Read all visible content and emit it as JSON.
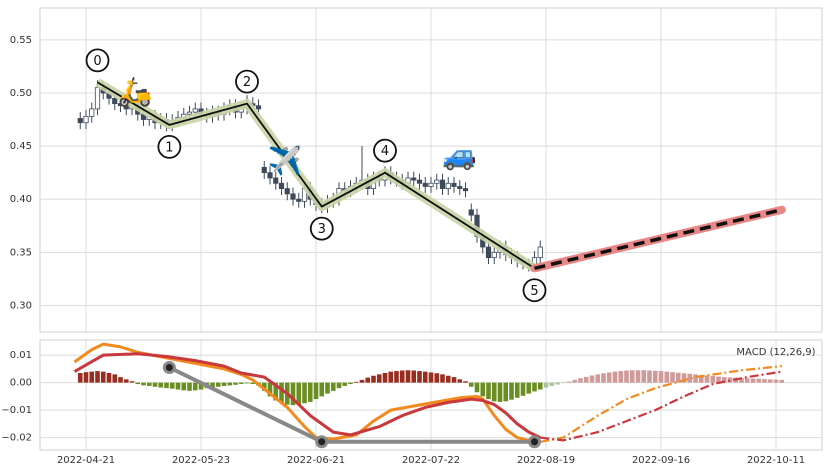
{
  "chart_data": [
    {
      "type": "candlestick",
      "xlim": [
        -7,
        129
      ],
      "ylim": [
        0.275,
        0.58
      ],
      "yticks": [
        {
          "value": 0.3,
          "label": "0.30"
        },
        0.35,
        {
          "value": 0.4,
          "label": "0.40"
        },
        0.45,
        {
          "value": 0.5,
          "label": "0.50"
        },
        0.55
      ],
      "grid": true,
      "up_color": "#ffffff",
      "down_color": "#3d4a5c",
      "edge_color": "#3d4a5c",
      "open": [
        0.476,
        0.472,
        0.478,
        0.485,
        0.505,
        0.5,
        0.495,
        0.49,
        0.488,
        0.485,
        0.49,
        0.48,
        0.475,
        0.478,
        0.472,
        0.475,
        0.47,
        0.474,
        0.477,
        0.48,
        0.482,
        0.485,
        0.48,
        0.478,
        0.482,
        0.48,
        0.485,
        0.488,
        0.482,
        0.486,
        0.49,
        0.488,
        0.43,
        0.425,
        0.42,
        0.415,
        0.41,
        0.405,
        0.4,
        0.398,
        0.41,
        0.4,
        0.395,
        0.393,
        0.398,
        0.4,
        0.41,
        0.408,
        0.412,
        0.415,
        0.418,
        0.41,
        0.42,
        0.418,
        0.425,
        0.42,
        0.418,
        0.415,
        0.42,
        0.418,
        0.415,
        0.412,
        0.415,
        0.418,
        0.41,
        0.415,
        0.412,
        0.41,
        0.39,
        0.385,
        0.365,
        0.355,
        0.345,
        0.35,
        0.355,
        0.348,
        0.345,
        0.342,
        0.34,
        0.338,
        0.345
      ],
      "high": [
        0.482,
        0.484,
        0.491,
        0.512,
        0.511,
        0.506,
        0.501,
        0.496,
        0.494,
        0.496,
        0.496,
        0.486,
        0.484,
        0.484,
        0.481,
        0.481,
        0.48,
        0.483,
        0.486,
        0.488,
        0.491,
        0.491,
        0.486,
        0.488,
        0.488,
        0.491,
        0.494,
        0.494,
        0.492,
        0.498,
        0.496,
        0.494,
        0.436,
        0.431,
        0.426,
        0.421,
        0.416,
        0.411,
        0.406,
        0.416,
        0.416,
        0.406,
        0.401,
        0.404,
        0.406,
        0.416,
        0.416,
        0.418,
        0.421,
        0.45,
        0.424,
        0.426,
        0.426,
        0.431,
        0.431,
        0.426,
        0.424,
        0.426,
        0.426,
        0.424,
        0.421,
        0.421,
        0.424,
        0.424,
        0.421,
        0.421,
        0.418,
        0.416,
        0.396,
        0.391,
        0.371,
        0.361,
        0.356,
        0.361,
        0.361,
        0.354,
        0.351,
        0.346,
        0.344,
        0.351,
        0.361
      ],
      "low": [
        0.466,
        0.466,
        0.472,
        0.479,
        0.494,
        0.489,
        0.484,
        0.482,
        0.479,
        0.479,
        0.474,
        0.469,
        0.469,
        0.466,
        0.466,
        0.464,
        0.464,
        0.468,
        0.471,
        0.474,
        0.476,
        0.474,
        0.472,
        0.472,
        0.474,
        0.474,
        0.479,
        0.476,
        0.476,
        0.48,
        0.482,
        0.479,
        0.419,
        0.414,
        0.409,
        0.404,
        0.399,
        0.394,
        0.392,
        0.392,
        0.394,
        0.389,
        0.387,
        0.387,
        0.392,
        0.394,
        0.402,
        0.402,
        0.406,
        0.409,
        0.404,
        0.404,
        0.412,
        0.412,
        0.414,
        0.412,
        0.409,
        0.409,
        0.412,
        0.409,
        0.406,
        0.406,
        0.409,
        0.404,
        0.404,
        0.406,
        0.404,
        0.402,
        0.379,
        0.359,
        0.349,
        0.339,
        0.339,
        0.344,
        0.342,
        0.339,
        0.336,
        0.334,
        0.332,
        0.332,
        0.339
      ],
      "close": [
        0.472,
        0.478,
        0.485,
        0.505,
        0.5,
        0.495,
        0.49,
        0.488,
        0.485,
        0.49,
        0.48,
        0.475,
        0.478,
        0.472,
        0.475,
        0.47,
        0.474,
        0.477,
        0.48,
        0.482,
        0.485,
        0.48,
        0.478,
        0.482,
        0.48,
        0.485,
        0.488,
        0.482,
        0.486,
        0.49,
        0.488,
        0.485,
        0.425,
        0.42,
        0.415,
        0.41,
        0.405,
        0.4,
        0.398,
        0.41,
        0.4,
        0.395,
        0.393,
        0.398,
        0.4,
        0.41,
        0.408,
        0.412,
        0.415,
        0.418,
        0.41,
        0.42,
        0.418,
        0.425,
        0.42,
        0.418,
        0.415,
        0.42,
        0.418,
        0.415,
        0.412,
        0.415,
        0.418,
        0.41,
        0.415,
        0.412,
        0.41,
        0.408,
        0.385,
        0.365,
        0.355,
        0.345,
        0.35,
        0.355,
        0.348,
        0.345,
        0.342,
        0.34,
        0.338,
        0.345,
        0.355
      ],
      "wave": {
        "labels": [
          "0",
          "1",
          "2",
          "3",
          "4",
          "5"
        ],
        "x": [
          3,
          15.5,
          29,
          42,
          53,
          79
        ],
        "y": [
          0.51,
          0.47,
          0.49,
          0.393,
          0.425,
          0.335
        ]
      },
      "projection": {
        "x": [
          79,
          122
        ],
        "y": [
          0.335,
          0.39
        ]
      },
      "annotations": [
        {
          "text": "🛵",
          "x": 9.5,
          "y": 0.5
        },
        {
          "text": "✈️",
          "x": 35.6,
          "y": 0.435
        },
        {
          "text": "🚙",
          "x": 66,
          "y": 0.44
        }
      ]
    },
    {
      "type": "macd",
      "title": "MACD (12,26,9)",
      "xlim": [
        -7,
        129
      ],
      "ylim": [
        -0.0245,
        0.0155
      ],
      "yticks": [
        {
          "value": -0.02,
          "label": "−0.02"
        },
        {
          "value": -0.01,
          "label": "−0.01"
        },
        {
          "value": 0,
          "label": "0.00"
        },
        0.01
      ],
      "xticks": [
        {
          "value": 1,
          "label": "2022-04-21"
        },
        {
          "value": 21,
          "label": "2022-05-23"
        },
        {
          "value": 41,
          "label": "2022-06-21"
        },
        {
          "value": 61,
          "label": "2022-07-22"
        },
        {
          "value": 81,
          "label": "2022-08-19"
        },
        {
          "value": 101,
          "label": "2022-09-16"
        },
        {
          "value": 121,
          "label": "2022-10-11"
        }
      ],
      "grid": true,
      "bars": [
        {
          "x0": 0,
          "up_color": "#9b2d20",
          "down_color": "#6b8e23",
          "values": [
            0.0035,
            0.0038,
            0.004,
            0.0042,
            0.004,
            0.0035,
            0.003,
            0.002,
            0.0012,
            0.0005,
            -0.0005,
            -0.001,
            -0.0012,
            -0.0015,
            -0.0018,
            -0.002,
            -0.0022,
            -0.0025,
            -0.0028,
            -0.003,
            -0.0028,
            -0.0025,
            -0.002,
            -0.0018,
            -0.0015,
            -0.0012,
            -0.001,
            -0.0008,
            -0.0005,
            -0.0003,
            -0.0005,
            -0.001,
            -0.003,
            -0.005,
            -0.0065,
            -0.0075,
            -0.008,
            -0.0082,
            -0.008,
            -0.0075,
            -0.007,
            -0.006,
            -0.005,
            -0.004,
            -0.003,
            -0.002,
            -0.0012,
            -0.0005,
            0.0003,
            0.001,
            0.0018,
            0.0025,
            0.003,
            0.0035,
            0.004,
            0.0042,
            0.0044,
            0.0045,
            0.0044,
            0.0042,
            0.004,
            0.0037,
            0.0034,
            0.003,
            0.0025,
            0.002,
            0.0012,
            0.0005,
            -0.0015,
            -0.0035,
            -0.005,
            -0.006,
            -0.0068,
            -0.007,
            -0.0068,
            -0.0062,
            -0.0055,
            -0.0048,
            -0.004,
            -0.0032,
            -0.0025
          ]
        },
        {
          "x0": 81,
          "up_color": "#d09a9a",
          "down_color": "#adc49a",
          "values": [
            -0.0018,
            -0.0012,
            -0.0007,
            -0.0002,
            0.0004,
            0.001,
            0.0016,
            0.0021,
            0.0026,
            0.003,
            0.0034,
            0.0037,
            0.004,
            0.0042,
            0.0044,
            0.0045,
            0.0045,
            0.0045,
            0.0044,
            0.0043,
            0.0042,
            0.004,
            0.0038,
            0.0036,
            0.0034,
            0.0032,
            0.003,
            0.0028,
            0.0026,
            0.0024,
            0.0022,
            0.002,
            0.0019,
            0.0018,
            0.0017,
            0.0016,
            0.0015,
            0.0014,
            0.0013,
            0.0012,
            0.0011,
            0.001
          ]
        }
      ],
      "series": [
        {
          "color": "#f28a1e",
          "style": "solid",
          "x": [
            -1,
            2,
            4,
            7,
            10,
            15,
            20,
            25,
            28,
            30,
            33,
            36,
            39,
            41,
            44,
            48,
            51,
            54,
            58,
            62,
            66,
            69,
            70,
            72,
            74,
            76,
            78,
            80
          ],
          "values": [
            0.0075,
            0.012,
            0.014,
            0.013,
            0.011,
            0.009,
            0.007,
            0.005,
            0.003,
            0.001,
            -0.004,
            -0.009,
            -0.016,
            -0.02,
            -0.0205,
            -0.019,
            -0.014,
            -0.01,
            -0.0085,
            -0.007,
            -0.0055,
            -0.005,
            -0.006,
            -0.012,
            -0.017,
            -0.02,
            -0.021,
            -0.0215
          ]
        },
        {
          "color": "#c8383c",
          "style": "solid",
          "x": [
            -1,
            4,
            10,
            15,
            20,
            25,
            28,
            32,
            36,
            40,
            44,
            47,
            52,
            56,
            60,
            64,
            68,
            70,
            72,
            74,
            76,
            78,
            80
          ],
          "values": [
            0.004,
            0.01,
            0.0105,
            0.0095,
            0.008,
            0.006,
            0.0035,
            0.002,
            -0.004,
            -0.012,
            -0.018,
            -0.019,
            -0.016,
            -0.012,
            -0.009,
            -0.0072,
            -0.006,
            -0.0065,
            -0.008,
            -0.011,
            -0.015,
            -0.018,
            -0.02
          ]
        },
        {
          "color": "#f28a1e",
          "style": "dashdot",
          "x": [
            80,
            84,
            90,
            95,
            100,
            107,
            115,
            122
          ],
          "values": [
            -0.0215,
            -0.02,
            -0.012,
            -0.006,
            -0.002,
            0.002,
            0.0045,
            0.006
          ]
        },
        {
          "color": "#c8383c",
          "style": "dashdot",
          "x": [
            80,
            84,
            90,
            95,
            100,
            105,
            110,
            116,
            122
          ],
          "values": [
            -0.02,
            -0.021,
            -0.018,
            -0.014,
            -0.01,
            -0.005,
            -0.0005,
            0.002,
            0.004
          ]
        }
      ],
      "wave": {
        "x": [
          15.5,
          42,
          79
        ],
        "y": [
          0.0055,
          -0.0215,
          -0.0215
        ]
      }
    }
  ]
}
